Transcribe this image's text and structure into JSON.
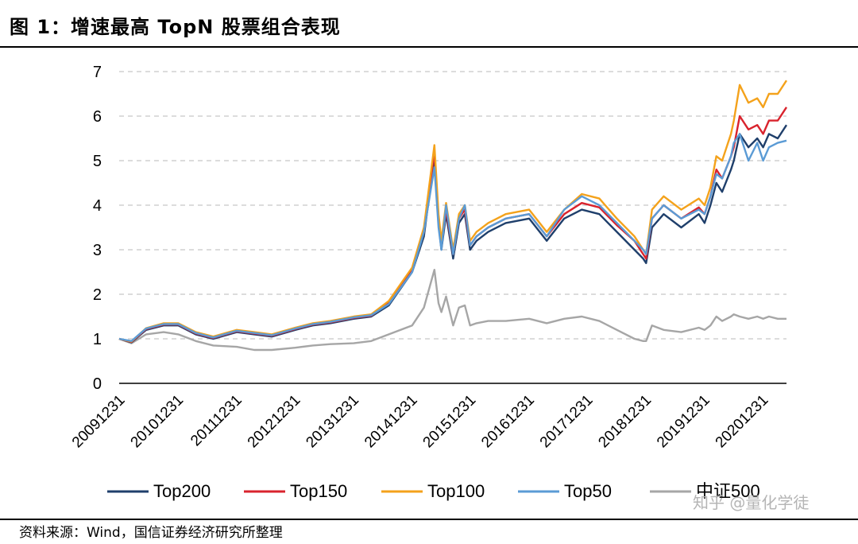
{
  "header": {
    "title": "图 1：增速最高 TopN 股票组合表现"
  },
  "footer": {
    "source": "资料来源：Wind，国信证券经济研究所整理"
  },
  "watermark": {
    "text": "知乎 @量化学徒"
  },
  "chart_data": {
    "type": "line",
    "title": "图 1：增速最高 TopN 股票组合表现",
    "xlabel": "",
    "ylabel": "",
    "ylim": [
      0,
      7
    ],
    "yticks": [
      0,
      1,
      2,
      3,
      4,
      5,
      6,
      7
    ],
    "grid": true,
    "legend_position": "bottom",
    "x_tick_labels": [
      "20091231",
      "20101231",
      "20111231",
      "20121231",
      "20131231",
      "20141231",
      "20151231",
      "20161231",
      "20171231",
      "20181231",
      "20191231",
      "20201231"
    ],
    "x": [
      2009.99,
      2010.2,
      2010.45,
      2010.75,
      2011.0,
      2011.3,
      2011.6,
      2012.0,
      2012.3,
      2012.6,
      2013.0,
      2013.3,
      2013.6,
      2014.0,
      2014.3,
      2014.6,
      2015.0,
      2015.2,
      2015.38,
      2015.45,
      2015.5,
      2015.58,
      2015.7,
      2015.8,
      2015.9,
      2015.99,
      2016.1,
      2016.3,
      2016.6,
      2017.0,
      2017.3,
      2017.6,
      2017.9,
      2018.2,
      2018.5,
      2018.8,
      2018.95,
      2019.0,
      2019.1,
      2019.3,
      2019.6,
      2019.9,
      2020.0,
      2020.1,
      2020.2,
      2020.3,
      2020.45,
      2020.5,
      2020.6,
      2020.75,
      2020.9,
      2021.0,
      2021.1,
      2021.25,
      2021.4
    ],
    "series": [
      {
        "name": "Top200",
        "color": "#1f3f6b",
        "values": [
          1.0,
          0.92,
          1.2,
          1.3,
          1.3,
          1.1,
          1.0,
          1.15,
          1.1,
          1.05,
          1.2,
          1.3,
          1.35,
          1.45,
          1.5,
          1.75,
          2.5,
          3.3,
          5.1,
          3.6,
          3.0,
          3.8,
          2.8,
          3.6,
          3.8,
          3.0,
          3.2,
          3.4,
          3.6,
          3.7,
          3.2,
          3.7,
          3.9,
          3.8,
          3.4,
          3.0,
          2.8,
          2.7,
          3.5,
          3.8,
          3.5,
          3.8,
          3.6,
          4.0,
          4.5,
          4.3,
          4.8,
          5.0,
          5.6,
          5.3,
          5.5,
          5.3,
          5.6,
          5.5,
          5.8
        ]
      },
      {
        "name": "Top150",
        "color": "#d9232d",
        "values": [
          1.0,
          0.93,
          1.22,
          1.32,
          1.32,
          1.12,
          1.02,
          1.17,
          1.12,
          1.07,
          1.22,
          1.32,
          1.37,
          1.47,
          1.52,
          1.8,
          2.55,
          3.4,
          5.2,
          3.7,
          3.1,
          3.9,
          2.9,
          3.7,
          3.9,
          3.1,
          3.3,
          3.5,
          3.7,
          3.8,
          3.3,
          3.8,
          4.05,
          3.95,
          3.55,
          3.2,
          2.9,
          2.8,
          3.7,
          4.0,
          3.7,
          3.95,
          3.8,
          4.2,
          4.8,
          4.6,
          5.1,
          5.3,
          6.0,
          5.7,
          5.8,
          5.6,
          5.9,
          5.9,
          6.2
        ]
      },
      {
        "name": "Top100",
        "color": "#f4a21b",
        "values": [
          1.0,
          0.94,
          1.24,
          1.35,
          1.35,
          1.15,
          1.05,
          1.2,
          1.15,
          1.1,
          1.25,
          1.35,
          1.4,
          1.5,
          1.55,
          1.85,
          2.6,
          3.5,
          5.35,
          3.8,
          3.2,
          4.05,
          3.0,
          3.8,
          4.0,
          3.2,
          3.4,
          3.6,
          3.8,
          3.9,
          3.4,
          3.9,
          4.25,
          4.15,
          3.7,
          3.3,
          3.0,
          2.9,
          3.9,
          4.2,
          3.9,
          4.15,
          4.0,
          4.4,
          5.1,
          5.0,
          5.6,
          5.9,
          6.7,
          6.3,
          6.4,
          6.2,
          6.5,
          6.5,
          6.8
        ]
      },
      {
        "name": "Top50",
        "color": "#5b9bd5",
        "values": [
          1.0,
          0.95,
          1.23,
          1.33,
          1.33,
          1.13,
          1.03,
          1.18,
          1.13,
          1.08,
          1.23,
          1.33,
          1.38,
          1.48,
          1.53,
          1.78,
          2.5,
          3.4,
          4.85,
          3.5,
          3.0,
          4.0,
          2.9,
          3.7,
          4.0,
          3.1,
          3.3,
          3.5,
          3.7,
          3.8,
          3.3,
          3.9,
          4.2,
          4.0,
          3.6,
          3.2,
          3.0,
          2.9,
          3.7,
          4.0,
          3.7,
          3.9,
          3.8,
          4.2,
          4.7,
          4.6,
          5.1,
          5.4,
          5.6,
          5.0,
          5.4,
          5.0,
          5.3,
          5.4,
          5.45
        ]
      },
      {
        "name": "中证500",
        "color": "#a6a6a6",
        "values": [
          1.0,
          0.9,
          1.1,
          1.15,
          1.1,
          0.95,
          0.85,
          0.82,
          0.75,
          0.75,
          0.8,
          0.85,
          0.88,
          0.9,
          0.95,
          1.1,
          1.3,
          1.7,
          2.55,
          1.8,
          1.6,
          1.95,
          1.3,
          1.7,
          1.75,
          1.3,
          1.35,
          1.4,
          1.4,
          1.45,
          1.35,
          1.45,
          1.5,
          1.4,
          1.2,
          1.0,
          0.95,
          0.95,
          1.3,
          1.2,
          1.15,
          1.25,
          1.2,
          1.3,
          1.5,
          1.4,
          1.5,
          1.55,
          1.5,
          1.45,
          1.5,
          1.45,
          1.5,
          1.45,
          1.45
        ]
      }
    ]
  }
}
